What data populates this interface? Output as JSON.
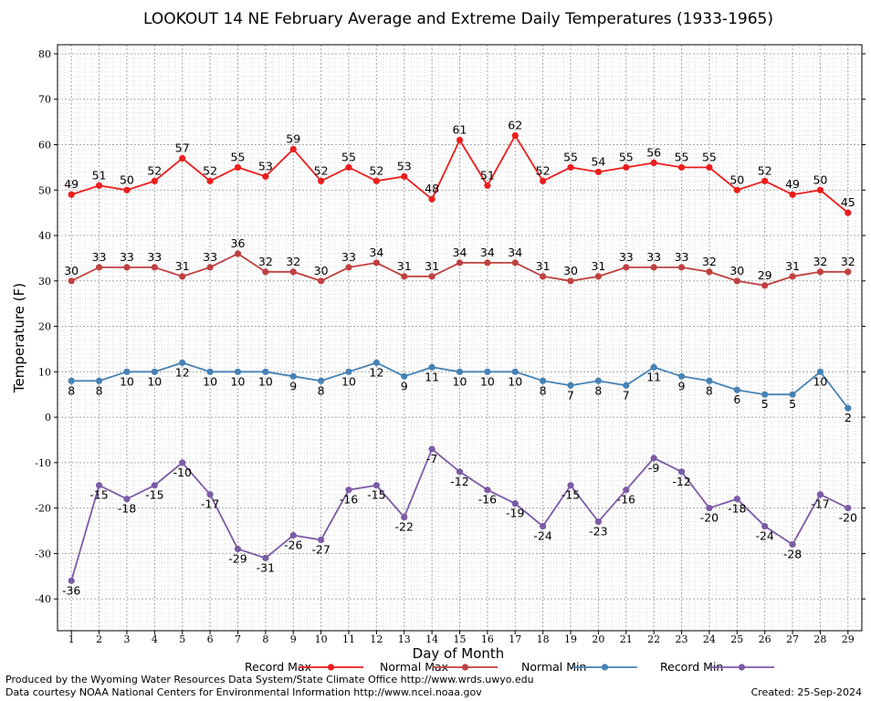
{
  "chart_data": {
    "type": "line",
    "title": "LOOKOUT 14 NE February Average and Extreme Daily Temperatures (1933-1965)",
    "xlabel": "Day of Month",
    "ylabel": "Temperature (F)",
    "ylim": [
      -47,
      82
    ],
    "xlim": [
      0.5,
      29.5
    ],
    "y_ticks": [
      -40,
      -30,
      -20,
      -10,
      0,
      10,
      20,
      30,
      40,
      50,
      60,
      70,
      80
    ],
    "x": [
      1,
      2,
      3,
      4,
      5,
      6,
      7,
      8,
      9,
      10,
      11,
      12,
      13,
      14,
      15,
      16,
      17,
      18,
      19,
      20,
      21,
      22,
      23,
      24,
      25,
      26,
      27,
      28,
      29
    ],
    "grid": true,
    "legend_position": "bottom",
    "series": [
      {
        "name": "Record Max",
        "color": "#ee1c1c",
        "label_pos": "above",
        "values": [
          49,
          51,
          50,
          52,
          57,
          52,
          55,
          53,
          59,
          52,
          55,
          52,
          53,
          48,
          61,
          51,
          62,
          52,
          55,
          54,
          55,
          56,
          55,
          55,
          50,
          52,
          49,
          50,
          45
        ]
      },
      {
        "name": "Normal Max",
        "color": "#c04040",
        "label_pos": "above",
        "values": [
          30,
          33,
          33,
          33,
          31,
          33,
          36,
          32,
          32,
          30,
          33,
          34,
          31,
          31,
          34,
          34,
          34,
          31,
          30,
          31,
          33,
          33,
          33,
          32,
          30,
          29,
          31,
          32,
          32
        ]
      },
      {
        "name": "Normal Min",
        "color": "#4682b4",
        "label_pos": "below",
        "values": [
          8,
          8,
          10,
          10,
          12,
          10,
          10,
          10,
          9,
          8,
          10,
          12,
          9,
          11,
          10,
          10,
          10,
          8,
          7,
          8,
          7,
          11,
          9,
          8,
          6,
          5,
          5,
          10,
          2
        ]
      },
      {
        "name": "Record Min",
        "color": "#7b5aa6",
        "label_pos": "below",
        "values": [
          -36,
          -15,
          -18,
          -15,
          -10,
          -17,
          -29,
          -31,
          -26,
          -27,
          -16,
          -15,
          -22,
          -7,
          -12,
          -16,
          -19,
          -24,
          -15,
          -23,
          -16,
          -9,
          -12,
          -20,
          -18,
          -24,
          -28,
          -17,
          -20
        ]
      }
    ]
  },
  "footer": {
    "line1": "Produced by the Wyoming Water Resources Data System/State Climate Office http://www.wrds.uwyo.edu",
    "line2": "Data courtesy NOAA National Centers for Environmental Information http://www.ncei.noaa.gov",
    "created": "Created:  25-Sep-2024"
  }
}
